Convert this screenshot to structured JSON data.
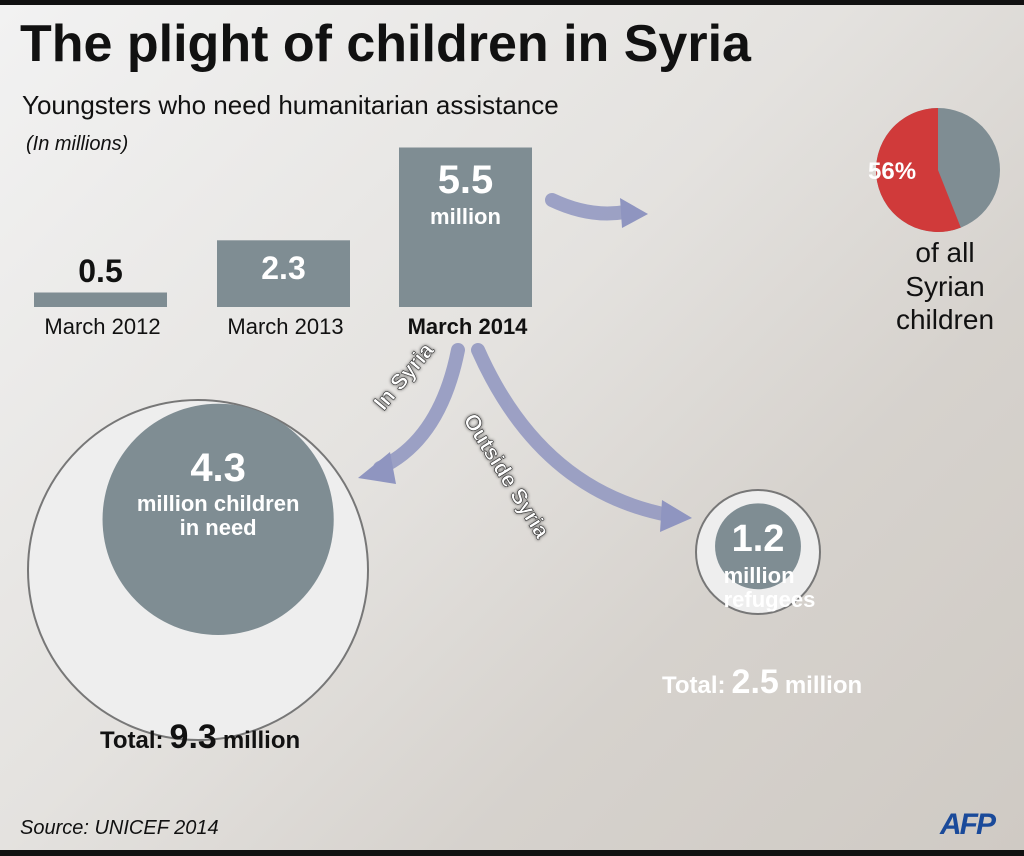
{
  "title": "The plight of children in Syria",
  "subtitle": "Youngsters who need humanitarian assistance",
  "unit_note": "(In millions)",
  "chart_data": [
    {
      "type": "bar",
      "categories": [
        "March  2012",
        "March  2013",
        "March  2014"
      ],
      "values": [
        0.5,
        2.3,
        5.5
      ],
      "annotation": "million",
      "color": "#7f8d93"
    },
    {
      "type": "pie",
      "values": [
        56
      ],
      "value_labels": [
        "56%"
      ],
      "caption": "of all Syrian children",
      "colors": [
        "#d03a3a",
        "#7f8d93"
      ]
    },
    {
      "type": "bubble",
      "items": [
        {
          "label": "In Syria",
          "value": 4.3,
          "text": "million children in need",
          "total_label": "Total:",
          "total": 9.3,
          "total_unit": "million"
        },
        {
          "label": "Outside Syria",
          "value": 1.2,
          "text": "million refugees",
          "total_label": "Total:",
          "total": 2.5,
          "total_unit": "million"
        }
      ],
      "colors": [
        "#7f8d93",
        "#eeeeee"
      ]
    }
  ],
  "source": "Source: UNICEF 2014",
  "logo": "AFP"
}
